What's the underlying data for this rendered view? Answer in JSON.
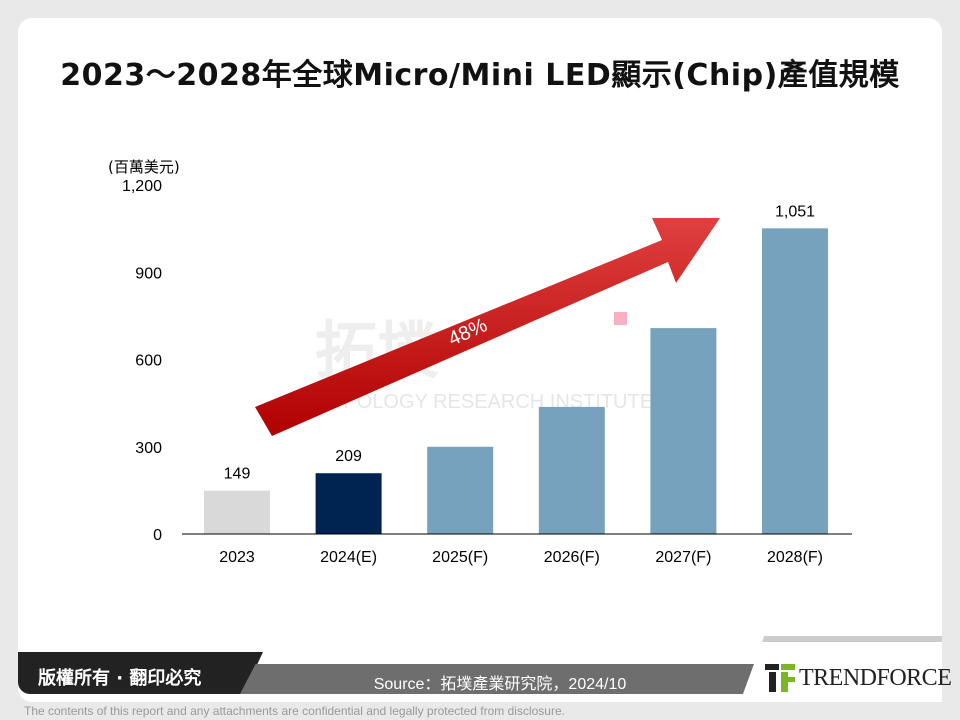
{
  "title": "2023～2028年全球Micro/Mini LED顯示(Chip)產值規模",
  "chart_data": {
    "type": "bar",
    "unit_label": "(百萬美元)",
    "categories": [
      "2023",
      "2024(E)",
      "2025(F)",
      "2026(F)",
      "2027(F)",
      "2028(F)"
    ],
    "values": [
      149,
      209,
      300,
      437,
      708,
      1051
    ],
    "data_labels": [
      "149",
      "209",
      "",
      "",
      "",
      "1,051"
    ],
    "bar_colors": [
      "#d9d9d9",
      "#002451",
      "#76a2bd",
      "#76a2bd",
      "#76a2bd",
      "#76a2bd"
    ],
    "ylim": [
      0,
      1200
    ],
    "yticks": [
      0,
      300,
      600,
      900,
      1200
    ],
    "ytick_labels": [
      "0",
      "300",
      "600",
      "900",
      "1,200"
    ],
    "grid": false,
    "annotation": {
      "text": "48%",
      "type": "arrow",
      "color": "#c00000"
    }
  },
  "watermark": {
    "text_cn": "拓墣",
    "text_en": "TOPOLOGY RESEARCH INSTITUTE"
  },
  "footer": {
    "copyright": "版權所有 · 翻印必究",
    "source": "Source：拓墣產業研究院，2024/10",
    "logo": "TRENDFORCE",
    "disclaimer": "The contents of this report and any attachments are confidential and legally protected from disclosure."
  }
}
